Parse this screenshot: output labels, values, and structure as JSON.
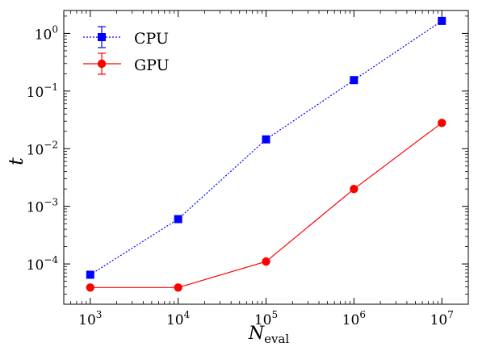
{
  "chart_data": {
    "type": "line",
    "xscale": "log",
    "yscale": "log",
    "xlabel": "N",
    "xlabel_sub": "eval",
    "ylabel": "t",
    "xlim": [
      500,
      20000000
    ],
    "ylim": [
      2e-05,
      2.5
    ],
    "grid": false,
    "legend_position": "top-left",
    "x": [
      1000,
      10000,
      100000,
      1000000,
      10000000
    ],
    "x_ticks": [
      {
        "value": 1000,
        "base": "10",
        "exp": "3"
      },
      {
        "value": 10000,
        "base": "10",
        "exp": "4"
      },
      {
        "value": 100000,
        "base": "10",
        "exp": "5"
      },
      {
        "value": 1000000,
        "base": "10",
        "exp": "6"
      },
      {
        "value": 10000000,
        "base": "10",
        "exp": "7"
      }
    ],
    "y_ticks": [
      {
        "value": 0.0001,
        "base": "10",
        "exp": "−4"
      },
      {
        "value": 0.001,
        "base": "10",
        "exp": "−3"
      },
      {
        "value": 0.01,
        "base": "10",
        "exp": "−2"
      },
      {
        "value": 0.1,
        "base": "10",
        "exp": "−1"
      },
      {
        "value": 1,
        "base": "10",
        "exp": "0"
      }
    ],
    "series": [
      {
        "name": "CPU",
        "color": "#0000ff",
        "marker": "square",
        "line_style": "dotted",
        "values": [
          6.5e-05,
          0.0006,
          0.0145,
          0.155,
          1.65
        ]
      },
      {
        "name": "GPU",
        "color": "#ff0000",
        "marker": "circle",
        "line_style": "solid",
        "values": [
          3.9e-05,
          3.9e-05,
          0.00011,
          0.002,
          0.028
        ]
      }
    ]
  }
}
